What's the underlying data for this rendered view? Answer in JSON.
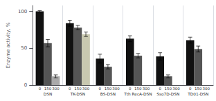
{
  "chart_data": {
    "type": "bar",
    "ylabel": "Enzyme activity, %",
    "categories": [
      "DSN",
      "TK-DSN",
      "BS-DSN",
      "Tth RecA-DSN",
      "Sso7D-DSN",
      "TD01-DSN"
    ],
    "series": [
      {
        "name": "0",
        "color": "#111111",
        "values": [
          100,
          84,
          36,
          63,
          39,
          61
        ],
        "errors": [
          1,
          4,
          6,
          4,
          5,
          4
        ]
      },
      {
        "name": "150",
        "color": "#555555",
        "values": [
          57,
          78,
          25,
          40,
          12,
          49
        ],
        "errors": [
          5,
          3,
          3,
          3,
          2,
          4
        ]
      },
      {
        "name": "300",
        "colors": [
          "#aaaaaa",
          "#c8c8b0",
          "#aaaaaa",
          "#aaaaaa",
          "#aaaaaa",
          "#aaaaaa"
        ],
        "values": [
          12,
          69,
          0,
          0,
          0,
          0
        ],
        "errors": [
          2,
          3,
          0,
          0,
          0,
          0
        ]
      }
    ],
    "ylim": [
      0,
      108
    ],
    "yticks": [
      0,
      50,
      100
    ],
    "grid": false
  }
}
